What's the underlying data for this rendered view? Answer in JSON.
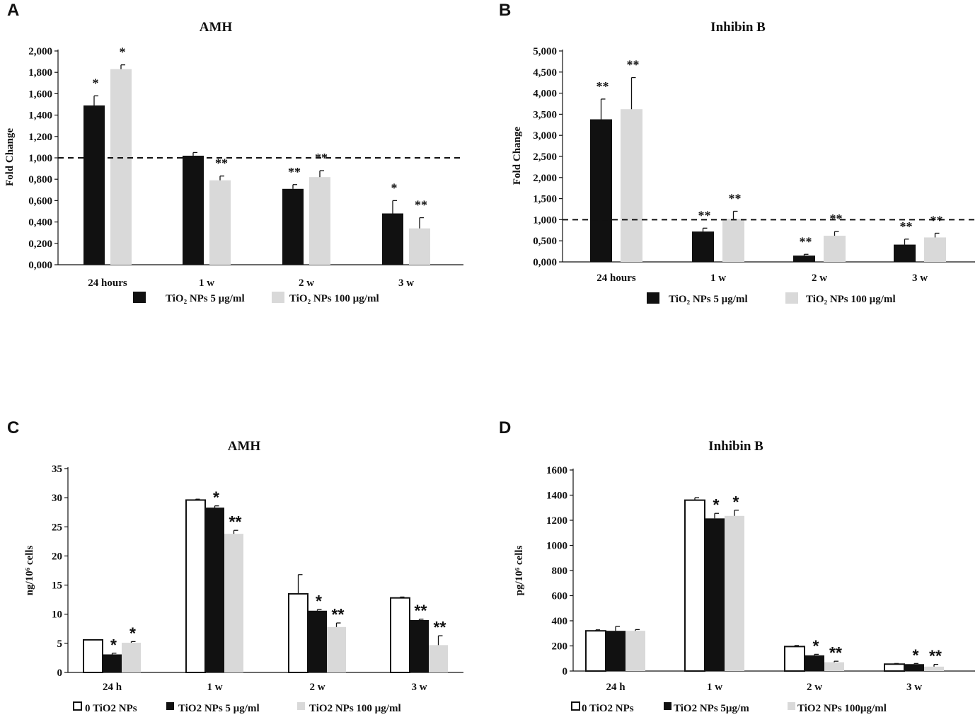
{
  "chart_data": [
    {
      "panel": "A",
      "type": "bar",
      "title": "AMH",
      "ylabel": "Fold Change",
      "xlabel": "",
      "ylim": [
        0,
        2.0
      ],
      "yticks": [
        "0,000",
        "0,200",
        "0,400",
        "0,600",
        "0,800",
        "1,000",
        "1,200",
        "1,400",
        "1,600",
        "1,800",
        "2,000"
      ],
      "tick_step": 0.2,
      "reference_line": 1.0,
      "categories": [
        "24 hours",
        "1 w",
        "2 w",
        "3 w"
      ],
      "series": [
        {
          "name": "TiO₂ NPs 5 µg/ml",
          "color": "#111111",
          "values": [
            1.49,
            1.02,
            0.71,
            0.48
          ],
          "errors": [
            0.09,
            0.03,
            0.04,
            0.12
          ],
          "significance": [
            "*",
            "",
            "**",
            "*"
          ]
        },
        {
          "name": "TiO₂ NPs 100 µg/ml",
          "color": "#d9d9d9",
          "values": [
            1.83,
            0.79,
            0.82,
            0.34
          ],
          "errors": [
            0.04,
            0.04,
            0.06,
            0.1
          ],
          "significance": [
            "*",
            "**",
            "**",
            "**"
          ]
        }
      ]
    },
    {
      "panel": "B",
      "type": "bar",
      "title": "Inhibin B",
      "ylabel": "Fold Change",
      "xlabel": "",
      "ylim": [
        0,
        5.0
      ],
      "yticks": [
        "0,000",
        "0,500",
        "1,000",
        "1,500",
        "2,000",
        "2,500",
        "3,000",
        "3,500",
        "4,000",
        "4,500",
        "5,000"
      ],
      "tick_step": 0.5,
      "reference_line": 1.0,
      "categories": [
        "24 hours",
        "1 w",
        "2 w",
        "3 w"
      ],
      "series": [
        {
          "name": "TiO₂ NPs 5 µg/ml",
          "color": "#111111",
          "values": [
            3.38,
            0.72,
            0.15,
            0.41
          ],
          "errors": [
            0.48,
            0.08,
            0.03,
            0.13
          ],
          "significance": [
            "**",
            "**",
            "**",
            "**"
          ]
        },
        {
          "name": "TiO₂ NPs 100 µg/ml",
          "color": "#d9d9d9",
          "values": [
            3.62,
            1.02,
            0.62,
            0.58
          ],
          "errors": [
            0.75,
            0.18,
            0.1,
            0.1
          ],
          "significance": [
            "**",
            "**",
            "**",
            "**"
          ]
        }
      ]
    },
    {
      "panel": "C",
      "type": "bar",
      "title": "AMH",
      "ylabel": "ng/10⁶ cells",
      "xlabel": "",
      "ylim": [
        0,
        35
      ],
      "yticks": [
        "0",
        "5",
        "10",
        "15",
        "20",
        "25",
        "30",
        "35"
      ],
      "tick_step": 5,
      "categories": [
        "24 h",
        "1 w",
        "2 w",
        "3 w"
      ],
      "series": [
        {
          "name": "0 TiO2 NPs",
          "color": "#ffffff",
          "values": [
            5.6,
            29.6,
            13.5,
            12.8
          ],
          "errors": [
            0,
            0.15,
            3.3,
            0.15
          ],
          "significance": [
            "",
            "",
            "",
            ""
          ]
        },
        {
          "name": "TiO2 NPs 5 µg/ml",
          "color": "#111111",
          "values": [
            3.1,
            28.3,
            10.6,
            9.0
          ],
          "errors": [
            0.2,
            0.3,
            0.2,
            0.15
          ],
          "significance": [
            "*",
            "*",
            "*",
            "**"
          ]
        },
        {
          "name": "TiO2 NPs 100 µg/ml",
          "color": "#d9d9d9",
          "values": [
            5.1,
            23.8,
            7.8,
            4.7
          ],
          "errors": [
            0.2,
            0.6,
            0.7,
            1.6
          ],
          "significance": [
            "*",
            "**",
            "**",
            "**"
          ]
        }
      ]
    },
    {
      "panel": "D",
      "type": "bar",
      "title": "Inhibin B",
      "ylabel": "pg/10⁶ cells",
      "xlabel": "",
      "ylim": [
        0,
        1600
      ],
      "yticks": [
        "0",
        "200",
        "400",
        "600",
        "800",
        "1000",
        "1200",
        "1400",
        "1600"
      ],
      "tick_step": 200,
      "categories": [
        "24 h",
        "1 w",
        "2 w",
        "3 w"
      ],
      "series": [
        {
          "name": "0 TiO2 NPs",
          "color": "#ffffff",
          "values": [
            320,
            1360,
            195,
            55
          ],
          "errors": [
            8,
            20,
            8,
            5
          ],
          "significance": [
            "",
            "",
            "",
            ""
          ]
        },
        {
          "name": "TiO2 NPs 5µg/m",
          "color": "#111111",
          "values": [
            320,
            1215,
            125,
            55
          ],
          "errors": [
            35,
            40,
            8,
            5
          ],
          "significance": [
            "",
            "*",
            "*",
            "*"
          ]
        },
        {
          "name": "TiO2 NPs 100µg/ml",
          "color": "#d9d9d9",
          "values": [
            320,
            1235,
            70,
            35
          ],
          "errors": [
            10,
            45,
            8,
            18
          ],
          "significance": [
            "",
            "*",
            "**",
            "**"
          ]
        }
      ]
    }
  ]
}
